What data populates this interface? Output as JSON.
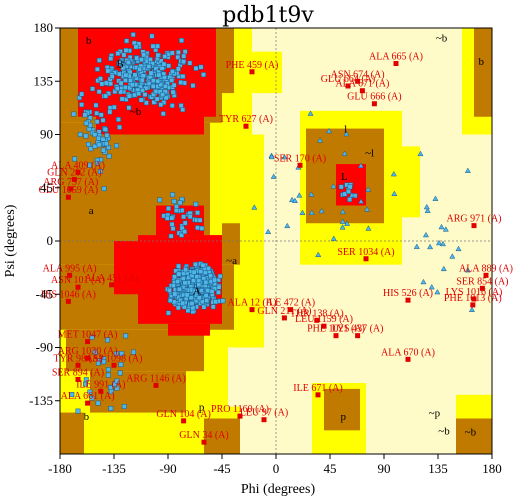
{
  "chart_data": {
    "type": "scatter",
    "title": "pdb1t9v",
    "xlabel": "Phi (degrees)",
    "ylabel": "Psi (degrees)",
    "xlim": [
      -180,
      180
    ],
    "ylim": [
      -180,
      180
    ],
    "x_ticks": [
      -180,
      -135,
      -90,
      -45,
      0,
      45,
      90,
      135,
      180
    ],
    "y_ticks": [
      -135,
      -90,
      -45,
      0,
      45,
      90,
      135,
      180
    ],
    "grid": false,
    "zero_lines": true,
    "colors": {
      "generously_allowed": "#fffbc8",
      "additionally_allowed": "#ffff00",
      "allowed": "#c07a00",
      "core": "#ff0000",
      "residue_point": "#4fb6e8",
      "glycine_point": "#4fb6e8",
      "outlier": "#e00000"
    },
    "region_labels": [
      {
        "text": "A",
        "phi": -66,
        "psi": -42
      },
      {
        "text": "B",
        "phi": -130,
        "psi": 150
      },
      {
        "text": "L",
        "phi": 57,
        "psi": 55
      },
      {
        "text": "a",
        "phi": -154,
        "psi": 26
      },
      {
        "text": "b",
        "phi": -156,
        "psi": 170
      },
      {
        "text": "l",
        "phi": 58,
        "psi": 95
      },
      {
        "text": "p",
        "phi": -62,
        "psi": -140
      },
      {
        "text": "~a",
        "phi": -37,
        "psi": -16
      },
      {
        "text": "~b",
        "phi": -117,
        "psi": 110
      },
      {
        "text": "~l",
        "phi": 78,
        "psi": 75
      },
      {
        "text": "~p",
        "phi": 132,
        "psi": -145
      },
      {
        "text": "~b",
        "phi": 138,
        "psi": 172
      },
      {
        "text": "b",
        "phi": 171,
        "psi": 152
      },
      {
        "text": "~b",
        "phi": 140,
        "psi": -160
      },
      {
        "text": "b",
        "phi": -158,
        "psi": -148
      },
      {
        "text": "p",
        "phi": 56,
        "psi": -148
      },
      {
        "text": "~b",
        "phi": 162,
        "psi": -161
      }
    ],
    "outliers": [
      {
        "label": "ALA 665 (A)",
        "phi": 100,
        "psi": 150
      },
      {
        "label": "ASN 674 (A)",
        "phi": 68,
        "psi": 135
      },
      {
        "label": "GLU 664 (A)",
        "phi": 60,
        "psi": 131
      },
      {
        "label": "ALA 671 (A)",
        "phi": 72,
        "psi": 127
      },
      {
        "label": "GLU 666 (A)",
        "phi": 82,
        "psi": 116
      },
      {
        "label": "PHE 459 (A)",
        "phi": -20,
        "psi": 143
      },
      {
        "label": "TYR 627 (A)",
        "phi": -25,
        "psi": 97
      },
      {
        "label": "SER 170 (A)",
        "phi": 20,
        "psi": 64
      },
      {
        "label": "ALA 409 (A)",
        "phi": -165,
        "psi": 58
      },
      {
        "label": "GLN 202 (A)",
        "phi": -168,
        "psi": 52
      },
      {
        "label": "ARG 757 (A)",
        "phi": -171,
        "psi": 44
      },
      {
        "label": "GLU 1059 (A)",
        "phi": -173,
        "psi": 37
      },
      {
        "label": "ARG 971 (A)",
        "phi": 165,
        "psi": 13
      },
      {
        "label": "SER 1034 (A)",
        "phi": 75,
        "psi": -15
      },
      {
        "label": "ALA 995 (A)",
        "phi": -172,
        "psi": -29
      },
      {
        "label": "ALA 451 (A)",
        "phi": -137,
        "psi": -37
      },
      {
        "label": "ASN 101 (A)",
        "phi": -165,
        "psi": -39
      },
      {
        "label": "HIS 1046 (A)",
        "phi": -173,
        "psi": -51
      },
      {
        "label": "ALA 889 (A)",
        "phi": 175,
        "psi": -29
      },
      {
        "label": "SER 854 (A)",
        "phi": 172,
        "psi": -40
      },
      {
        "label": "LYS 1016 (A)",
        "phi": 165,
        "psi": -49
      },
      {
        "label": "PHE 1013 (A)",
        "phi": 164,
        "psi": -54
      },
      {
        "label": "ALA 12 (A)",
        "phi": -20,
        "psi": -58
      },
      {
        "label": "ILE 472 (A)",
        "phi": 12,
        "psi": -58
      },
      {
        "label": "GLN 211 (A)",
        "phi": 7,
        "psi": -65
      },
      {
        "label": "HIS 526 (A)",
        "phi": 110,
        "psi": -50
      },
      {
        "label": "THR 138 (A)",
        "phi": 34,
        "psi": -67
      },
      {
        "label": "LEU 1159 (A)",
        "phi": 40,
        "psi": -72
      },
      {
        "label": "PHE 1021 (A)",
        "phi": 50,
        "psi": -80
      },
      {
        "label": "LYS 437 (A)",
        "phi": 68,
        "psi": -80
      },
      {
        "label": "MET 1047 (A)",
        "phi": -157,
        "psi": -85
      },
      {
        "label": "ARG 1030 (A)",
        "phi": -157,
        "psi": -99
      },
      {
        "label": "TYR 98 (A)",
        "phi": -165,
        "psi": -105
      },
      {
        "label": "ASP 1098 (A)",
        "phi": -135,
        "psi": -105
      },
      {
        "label": "SER 894 (A)",
        "phi": -165,
        "psi": -117
      },
      {
        "label": "ALA 670 (A)",
        "phi": 110,
        "psi": -100
      },
      {
        "label": "ILE 991 (A)",
        "phi": -146,
        "psi": -127
      },
      {
        "label": "ARG 1146 (A)",
        "phi": -100,
        "psi": -122
      },
      {
        "label": "ALA 661 (A)",
        "phi": -157,
        "psi": -137
      },
      {
        "label": "ILE 671 (A)",
        "phi": 35,
        "psi": -130
      },
      {
        "label": "GLN 104 (A)",
        "phi": -77,
        "psi": -152
      },
      {
        "label": "PRO 1160 (A)",
        "phi": -30,
        "psi": -148
      },
      {
        "label": "LEU 97 (A)",
        "phi": -10,
        "psi": -151
      },
      {
        "label": "GLN 34 (A)",
        "phi": -60,
        "psi": -170
      }
    ]
  }
}
